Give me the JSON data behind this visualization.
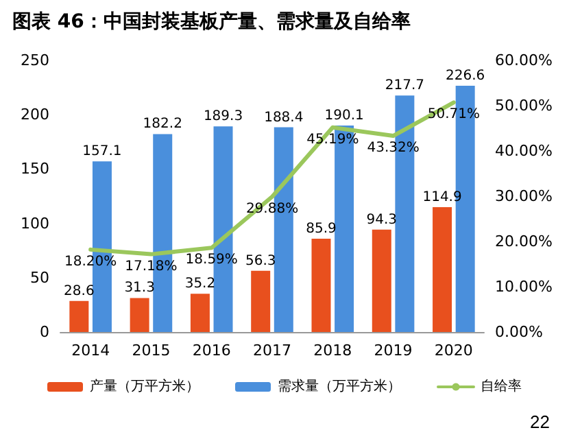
{
  "chart_data": {
    "type": "bar",
    "title": "图表 46：中国封装基板产量、需求量及自给率",
    "categories": [
      "2014",
      "2015",
      "2016",
      "2017",
      "2018",
      "2019",
      "2020"
    ],
    "series": [
      {
        "name": "产量（万平方米）",
        "color": "#e8501e",
        "values": [
          28.6,
          31.3,
          35.2,
          56.3,
          85.9,
          94.3,
          114.9
        ]
      },
      {
        "name": "需求量（万平方米）",
        "color": "#4a8fdc",
        "values": [
          157.1,
          182.2,
          189.3,
          188.4,
          190.1,
          217.7,
          226.6
        ]
      },
      {
        "name": "自给率",
        "type": "line",
        "axis": "y2",
        "color": "#9bc75c",
        "marker": "none",
        "line_style": "solid",
        "values": [
          18.2,
          17.18,
          18.59,
          29.88,
          45.19,
          43.32,
          50.71
        ],
        "value_labels": [
          "18.20%",
          "17.18%",
          "18.59%",
          "29.88%",
          "45.19%",
          "43.32%",
          "50.71%"
        ]
      }
    ],
    "data_labels": true,
    "ylim": [
      0,
      250
    ],
    "yticks": [
      0,
      50,
      100,
      150,
      200,
      250
    ],
    "y2lim": [
      0,
      60
    ],
    "y2ticks": [
      {
        "value": 0,
        "label": "0.00%"
      },
      {
        "value": 10,
        "label": "10.00%"
      },
      {
        "value": 20,
        "label": "20.00%"
      },
      {
        "value": 30,
        "label": "30.00%"
      },
      {
        "value": 40,
        "label": "40.00%"
      },
      {
        "value": 50,
        "label": "50.00%"
      },
      {
        "value": 60,
        "label": "60.00%"
      }
    ],
    "grid": false,
    "legend": "bottom",
    "annotations": [
      "22"
    ]
  }
}
